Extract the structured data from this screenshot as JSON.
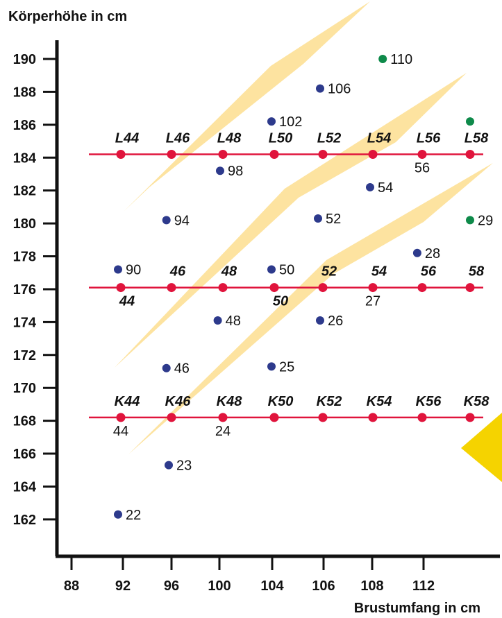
{
  "chart_data": {
    "type": "scatter",
    "title": "",
    "ylabel": "Körperhöhe in cm",
    "xlabel": "Brustumfang in cm",
    "ylim": [
      160.5,
      190.9
    ],
    "y_ticks": [
      190,
      188,
      186,
      184,
      182,
      180,
      178,
      176,
      174,
      172,
      170,
      168,
      166,
      164,
      162
    ],
    "x_ticks": [
      "88",
      "92",
      "96",
      "100",
      "104",
      "106",
      "108",
      "112"
    ],
    "size_lines": [
      {
        "series": "L",
        "koerperhoehe": 184.2,
        "labels": [
          "L44",
          "L46",
          "L48",
          "L50",
          "L52",
          "L54",
          "L56",
          "L58"
        ],
        "extra_labels": [
          {
            "text": "56",
            "col": 6,
            "side": "below"
          }
        ]
      },
      {
        "series": "N",
        "koerperhoehe": 176.1,
        "labels": [
          "44",
          "46",
          "48",
          "50",
          "52",
          "54",
          "56",
          "58"
        ],
        "label_side": [
          "below",
          "above",
          "above",
          "below",
          "above",
          "above",
          "above",
          "above"
        ],
        "extra_labels": [
          {
            "text": "27",
            "col": 5,
            "side": "below",
            "plain": true
          }
        ]
      },
      {
        "series": "K",
        "koerperhoehe": 168.2,
        "labels": [
          "K44",
          "K46",
          "K48",
          "K50",
          "K52",
          "K54",
          "K56",
          "K58"
        ],
        "extra_labels": [
          {
            "text": "44",
            "col": 0,
            "side": "below",
            "plain": true
          },
          {
            "text": "24",
            "col": 2,
            "side": "below",
            "plain": true
          }
        ]
      }
    ],
    "points": [
      {
        "col": 5.2,
        "y": 190.0,
        "label": "110",
        "color": "#0e8a4a"
      },
      {
        "col": 4.0,
        "y": 188.2,
        "label": "106",
        "color": "#2d3a8c"
      },
      {
        "col": 3.0,
        "y": 186.2,
        "label": "102",
        "color": "#2d3a8c"
      },
      {
        "col": 7.0,
        "y": 186.2,
        "label": "",
        "color": "#0e8a4a"
      },
      {
        "col": 2.0,
        "y": 183.2,
        "label": "98",
        "color": "#2d3a8c"
      },
      {
        "col": 5.0,
        "y": 182.2,
        "label": "54",
        "color": "#2d3a8c"
      },
      {
        "col": 0.9,
        "y": 180.2,
        "label": "94",
        "color": "#2d3a8c"
      },
      {
        "col": 3.9,
        "y": 180.3,
        "label": "52",
        "color": "#2d3a8c"
      },
      {
        "col": 7.0,
        "y": 180.2,
        "label": "29",
        "color": "#0e8a4a"
      },
      {
        "col": 5.9,
        "y": 178.2,
        "label": "28",
        "color": "#2d3a8c"
      },
      {
        "col": 0.0,
        "y": 177.2,
        "label": "90",
        "color": "#2d3a8c"
      },
      {
        "col": 3.0,
        "y": 177.2,
        "label": "50",
        "color": "#2d3a8c"
      },
      {
        "col": 1.9,
        "y": 174.1,
        "label": "48",
        "color": "#2d3a8c"
      },
      {
        "col": 4.0,
        "y": 174.1,
        "label": "26",
        "color": "#2d3a8c"
      },
      {
        "col": 0.9,
        "y": 171.2,
        "label": "46",
        "color": "#2d3a8c"
      },
      {
        "col": 3.0,
        "y": 171.3,
        "label": "25",
        "color": "#2d3a8c"
      },
      {
        "col": 1.0,
        "y": 165.3,
        "label": "23",
        "color": "#2d3a8c"
      },
      {
        "col": 0.0,
        "y": 162.3,
        "label": "22",
        "color": "#2d3a8c"
      }
    ],
    "colors": {
      "size_line": "#e0143c",
      "point_blue": "#2d3a8c",
      "point_green": "#0e8a4a",
      "band": "#fde3a0",
      "corner_triangle": "#f5d300",
      "axis": "#111111"
    }
  }
}
